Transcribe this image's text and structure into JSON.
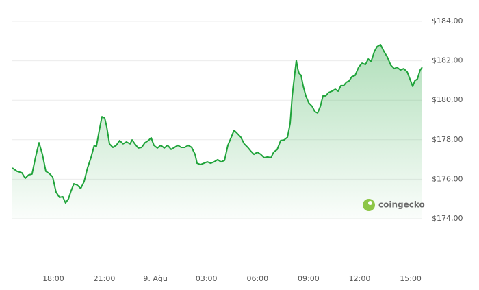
{
  "chart_data": {
    "type": "area",
    "watermark": "coingecko",
    "color": "#1fa33a",
    "xlim": [
      -2.41,
      21.68
    ],
    "xticks": [
      {
        "value": 0,
        "label": "18:00"
      },
      {
        "value": 3,
        "label": "21:00"
      },
      {
        "value": 6,
        "label": "9. Ağu"
      },
      {
        "value": 9,
        "label": "03:00"
      },
      {
        "value": 12,
        "label": "06:00"
      },
      {
        "value": 15,
        "label": "09:00"
      },
      {
        "value": 18,
        "label": "12:00"
      },
      {
        "value": 21,
        "label": "15:00"
      }
    ],
    "ylim": [
      174,
      184
    ],
    "yticks": [
      {
        "value": 174,
        "label": "$174,00"
      },
      {
        "value": 176,
        "label": "$176,00"
      },
      {
        "value": 178,
        "label": "$178,00"
      },
      {
        "value": 180,
        "label": "$180,00"
      },
      {
        "value": 182,
        "label": "$182,00"
      },
      {
        "value": 184,
        "label": "$184,00"
      }
    ],
    "grid": true,
    "x": [
      -2.41,
      -2.13,
      -1.85,
      -1.65,
      -1.45,
      -1.25,
      -1.05,
      -0.84,
      -0.64,
      -0.44,
      -0.24,
      -0.04,
      0.16,
      0.36,
      0.56,
      0.72,
      0.89,
      1.05,
      1.21,
      1.41,
      1.61,
      1.81,
      2.01,
      2.21,
      2.41,
      2.53,
      2.7,
      2.86,
      3.02,
      3.14,
      3.3,
      3.5,
      3.7,
      3.9,
      4.1,
      4.3,
      4.51,
      4.63,
      4.79,
      4.99,
      5.19,
      5.39,
      5.59,
      5.75,
      5.91,
      6.11,
      6.32,
      6.52,
      6.72,
      6.92,
      7.12,
      7.32,
      7.52,
      7.72,
      7.93,
      8.13,
      8.33,
      8.45,
      8.65,
      8.85,
      9.05,
      9.25,
      9.45,
      9.66,
      9.86,
      10.06,
      10.26,
      10.46,
      10.62,
      10.82,
      11.02,
      11.22,
      11.43,
      11.59,
      11.79,
      11.99,
      12.19,
      12.39,
      12.59,
      12.79,
      12.95,
      13.16,
      13.36,
      13.56,
      13.76,
      13.92,
      14.04,
      14.2,
      14.28,
      14.36,
      14.44,
      14.56,
      14.68,
      14.84,
      15.01,
      15.21,
      15.37,
      15.53,
      15.69,
      15.85,
      16.01,
      16.17,
      16.37,
      16.57,
      16.74,
      16.9,
      17.06,
      17.22,
      17.38,
      17.54,
      17.74,
      17.94,
      18.14,
      18.34,
      18.51,
      18.67,
      18.87,
      19.03,
      19.23,
      19.43,
      19.63,
      19.83,
      20.03,
      20.2,
      20.4,
      20.6,
      20.8,
      21.0,
      21.12,
      21.24,
      21.4,
      21.56,
      21.68
    ],
    "values": [
      176.57,
      176.4,
      176.33,
      176.05,
      176.22,
      176.26,
      177.09,
      177.85,
      177.26,
      176.4,
      176.29,
      176.12,
      175.35,
      175.08,
      175.11,
      174.8,
      175.01,
      175.42,
      175.77,
      175.7,
      175.53,
      175.88,
      176.57,
      177.09,
      177.72,
      177.65,
      178.48,
      179.17,
      179.1,
      178.65,
      177.79,
      177.61,
      177.72,
      177.96,
      177.79,
      177.89,
      177.79,
      177.99,
      177.79,
      177.58,
      177.61,
      177.85,
      177.96,
      178.1,
      177.72,
      177.58,
      177.72,
      177.58,
      177.72,
      177.51,
      177.61,
      177.72,
      177.61,
      177.61,
      177.72,
      177.61,
      177.26,
      176.81,
      176.74,
      176.81,
      176.88,
      176.81,
      176.88,
      176.99,
      176.88,
      176.95,
      177.72,
      178.13,
      178.48,
      178.31,
      178.13,
      177.79,
      177.61,
      177.44,
      177.26,
      177.37,
      177.26,
      177.09,
      177.13,
      177.09,
      177.37,
      177.51,
      177.96,
      177.99,
      178.13,
      178.83,
      180.22,
      181.43,
      182.02,
      181.6,
      181.36,
      181.26,
      180.74,
      180.22,
      179.87,
      179.69,
      179.42,
      179.35,
      179.69,
      180.22,
      180.22,
      180.39,
      180.46,
      180.56,
      180.46,
      180.74,
      180.74,
      180.91,
      180.98,
      181.19,
      181.26,
      181.67,
      181.88,
      181.81,
      182.09,
      181.95,
      182.47,
      182.72,
      182.82,
      182.47,
      182.19,
      181.78,
      181.6,
      181.67,
      181.53,
      181.6,
      181.43,
      180.98,
      180.7,
      180.98,
      181.08,
      181.53,
      181.67
    ]
  }
}
